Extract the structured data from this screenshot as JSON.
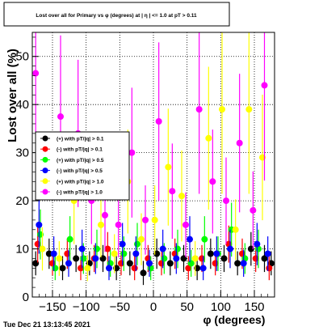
{
  "chart_data": {
    "type": "scatter",
    "title": "Lost over all for Primary vs φ (degrees) at | η | <= 1.0 at pT > 0.11",
    "xlabel": "φ (degrees)",
    "ylabel": "Lost  over all (%)",
    "xlim": [
      -180,
      180
    ],
    "ylim": [
      0,
      55
    ],
    "xticks": [
      -150,
      -100,
      -50,
      0,
      50,
      100,
      150
    ],
    "yticks": [
      0,
      10,
      20,
      30,
      40,
      50
    ],
    "grid": true,
    "legend_position": "left",
    "footer": "Tue Dec 21 13:13:45 2021",
    "series": [
      {
        "name": "(+) with pT/|q| > 0.1",
        "color": "#000000",
        "x": [
          -175,
          -155,
          -135,
          -115,
          -95,
          -75,
          -55,
          -35,
          -15,
          5,
          25,
          45,
          65,
          85,
          105,
          125,
          145,
          165,
          175
        ],
        "y": [
          7,
          9,
          6,
          8,
          7,
          8,
          6,
          7,
          5,
          9,
          7,
          8,
          6,
          9,
          8,
          7,
          10,
          8,
          7
        ]
      },
      {
        "name": "(-) with pT/|q| > 0.1",
        "color": "#ff0000",
        "x": [
          -172,
          -150,
          -128,
          -108,
          -88,
          -68,
          -48,
          -28,
          -8,
          12,
          32,
          52,
          72,
          92,
          112,
          132,
          152,
          172
        ],
        "y": [
          11,
          7,
          9,
          6,
          8,
          10,
          7,
          6,
          8,
          7,
          9,
          6,
          8,
          7,
          11,
          9,
          8,
          6
        ]
      },
      {
        "name": "(+) with pT/|q| > 0.5",
        "color": "#00ff00",
        "x": [
          -168,
          -146,
          -124,
          -104,
          -84,
          -64,
          -44,
          -24,
          -4,
          16,
          36,
          56,
          76,
          96,
          116,
          136,
          156
        ],
        "y": [
          13,
          6,
          12,
          8,
          10,
          7,
          9,
          11,
          6,
          8,
          10,
          7,
          12,
          9,
          14,
          8,
          10
        ]
      },
      {
        "name": "(-) with pT/|q| > 0.5",
        "color": "#0000ff",
        "x": [
          -170,
          -148,
          -126,
          -106,
          -86,
          -66,
          -46,
          -26,
          -6,
          14,
          34,
          54,
          74,
          94,
          114,
          134,
          154,
          170
        ],
        "y": [
          15,
          9,
          7,
          10,
          8,
          6,
          11,
          9,
          7,
          10,
          8,
          12,
          6,
          9,
          10,
          7,
          11,
          9
        ]
      },
      {
        "name": "(+) with pT/|q| > 1.0",
        "color": "#ffff00",
        "x": [
          -165,
          -140,
          -118,
          -98,
          -78,
          -58,
          -38,
          -18,
          2,
          22,
          42,
          62,
          82,
          102,
          122,
          142,
          162
        ],
        "y": [
          10,
          8,
          20,
          6,
          15,
          9,
          24,
          12,
          16,
          27,
          21,
          8,
          33,
          39,
          14,
          39,
          29
        ]
      },
      {
        "name": "(-) with pT/|q| > 1.0",
        "color": "#ff00ff",
        "x": [
          -175,
          -138,
          -112,
          -92,
          -72,
          -52,
          -32,
          -12,
          8,
          28,
          48,
          68,
          88,
          108,
          128,
          148,
          165
        ],
        "y": [
          46.5,
          37.5,
          34,
          20,
          17,
          15,
          30,
          16,
          36.5,
          22,
          15,
          39,
          24,
          20,
          32,
          18,
          44
        ]
      }
    ]
  }
}
